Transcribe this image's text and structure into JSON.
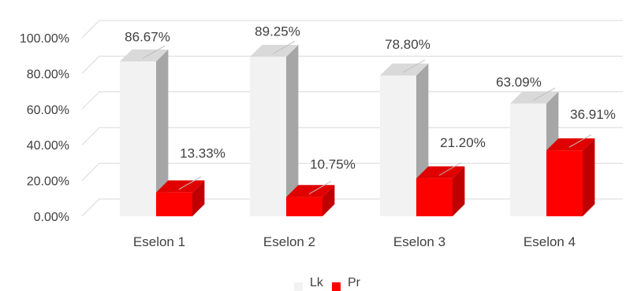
{
  "chart_data": {
    "type": "bar",
    "three_d": true,
    "categories": [
      "Eselon 1",
      "Eselon 2",
      "Eselon 3",
      "Eselon 4"
    ],
    "series": [
      {
        "name": "Lk",
        "values": [
          86.67,
          89.25,
          78.8,
          63.09
        ],
        "labels": [
          "86.67%",
          "89.25%",
          "78.80%",
          "63.09%"
        ],
        "color": "#f2f2f2",
        "side_color": "#a6a6a6",
        "top_color": "#d9d9d9"
      },
      {
        "name": "Pr",
        "values": [
          13.33,
          10.75,
          21.2,
          36.91
        ],
        "labels": [
          "13.33%",
          "10.75%",
          "21.20%",
          "36.91%"
        ],
        "color": "#ff0000",
        "side_color": "#c00000",
        "top_color": "#e00000"
      }
    ],
    "y_ticks": [
      0,
      20,
      40,
      60,
      80,
      100
    ],
    "y_tick_labels": [
      "0.00%",
      "20.00%",
      "40.00%",
      "60.00%",
      "80.00%",
      "100.00%"
    ],
    "ylim": [
      0,
      100
    ],
    "grid": true,
    "legend_position": "bottom",
    "title": "",
    "xlabel": "",
    "ylabel": ""
  }
}
